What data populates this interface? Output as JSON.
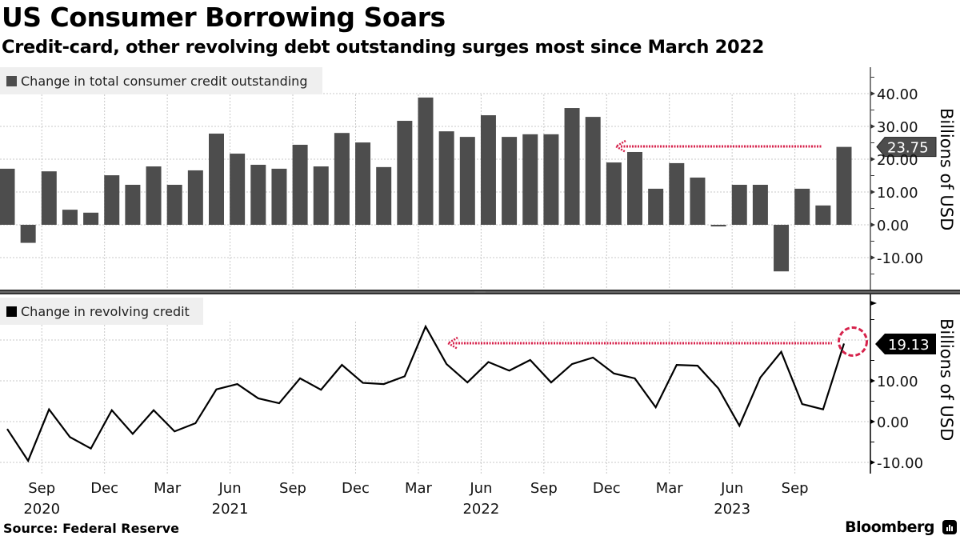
{
  "title": "US Consumer Borrowing Soars",
  "subtitle": "Credit-card, other revolving debt outstanding surges most since March 2022",
  "footer": {
    "source": "Source: Federal Reserve",
    "brand": "Bloomberg",
    "brand_icon": "bloomberg-terminal-icon"
  },
  "colors": {
    "bar": "#4d4d4d",
    "line": "#000000",
    "annotation": "#d6224b",
    "grid": "#c8c8c8",
    "legend_bg": "#efefef"
  },
  "chart_data": [
    {
      "type": "bar",
      "panel": "top",
      "legend": "Change in total consumer credit outstanding",
      "ylabel": "Billions of USD",
      "ylim": [
        -20,
        48
      ],
      "yticks": [
        -10,
        0,
        10,
        20,
        30,
        40
      ],
      "ytick_labels": [
        "-10.00",
        "0.00",
        "10.00",
        "20.00",
        "30.00",
        "40.00"
      ],
      "grid": true,
      "last_value_label": "23.75",
      "annotation": "arrow from latest value back to Dec 2022 level",
      "categories": [
        "Jul 2020",
        "Aug 2020",
        "Sep 2020",
        "Oct 2020",
        "Nov 2020",
        "Dec 2020",
        "Jan 2021",
        "Feb 2021",
        "Mar 2021",
        "Apr 2021",
        "May 2021",
        "Jun 2021",
        "Jul 2021",
        "Aug 2021",
        "Sep 2021",
        "Oct 2021",
        "Nov 2021",
        "Dec 2021",
        "Jan 2022",
        "Feb 2022",
        "Mar 2022",
        "Apr 2022",
        "May 2022",
        "Jun 2022",
        "Jul 2022",
        "Aug 2022",
        "Sep 2022",
        "Oct 2022",
        "Nov 2022",
        "Dec 2022",
        "Jan 2023",
        "Feb 2023",
        "Mar 2023",
        "Apr 2023",
        "May 2023",
        "Jun 2023",
        "Jul 2023",
        "Aug 2023",
        "Sep 2023",
        "Oct 2023",
        "Nov 2023"
      ],
      "values": [
        17.1,
        -5.5,
        16.3,
        4.6,
        3.7,
        15.1,
        12.2,
        17.8,
        12.2,
        16.6,
        27.8,
        21.7,
        18.3,
        17.1,
        24.4,
        17.8,
        28.0,
        25.1,
        17.6,
        31.7,
        38.8,
        28.5,
        26.8,
        33.4,
        26.8,
        27.6,
        27.6,
        35.6,
        32.9,
        19.0,
        22.2,
        11.0,
        18.8,
        14.4,
        -0.5,
        12.2,
        12.2,
        -14.2,
        11.0,
        5.9,
        23.75
      ]
    },
    {
      "type": "line",
      "panel": "bottom",
      "legend": "Change in revolving credit",
      "ylabel": "Billions of USD",
      "ylim": [
        -12,
        30
      ],
      "yticks": [
        -10,
        0,
        10
      ],
      "ytick_labels": [
        "-10.00",
        "0.00",
        "10.00"
      ],
      "grid": true,
      "last_value_label": "19.13",
      "annotation": "dotted arrow from circled latest value back to March 2022 level",
      "categories": [
        "Jul 2020",
        "Aug 2020",
        "Sep 2020",
        "Oct 2020",
        "Nov 2020",
        "Dec 2020",
        "Jan 2021",
        "Feb 2021",
        "Mar 2021",
        "Apr 2021",
        "May 2021",
        "Jun 2021",
        "Jul 2021",
        "Aug 2021",
        "Sep 2021",
        "Oct 2021",
        "Nov 2021",
        "Dec 2021",
        "Jan 2022",
        "Feb 2022",
        "Mar 2022",
        "Apr 2022",
        "May 2022",
        "Jun 2022",
        "Jul 2022",
        "Aug 2022",
        "Sep 2022",
        "Oct 2022",
        "Nov 2022",
        "Dec 2022",
        "Jan 2023",
        "Feb 2023",
        "Mar 2023",
        "Apr 2023",
        "May 2023",
        "Jun 2023",
        "Jul 2023",
        "Aug 2023",
        "Sep 2023",
        "Oct 2023",
        "Nov 2023"
      ],
      "values": [
        -1.8,
        -9.6,
        3.0,
        -3.8,
        -6.6,
        2.8,
        -3.0,
        2.8,
        -2.4,
        -0.4,
        7.9,
        9.2,
        5.7,
        4.5,
        10.6,
        7.8,
        13.9,
        9.5,
        9.2,
        11.1,
        23.3,
        14.1,
        9.6,
        14.6,
        12.5,
        15.1,
        9.6,
        14.1,
        15.7,
        11.8,
        10.6,
        3.5,
        13.9,
        13.7,
        8.1,
        -1.0,
        10.8,
        17.1,
        4.3,
        3.0,
        19.13
      ]
    }
  ],
  "x_axis": {
    "ticks": [
      {
        "month": "Sep",
        "year": "2020"
      },
      {
        "month": "Dec",
        "year": ""
      },
      {
        "month": "Mar",
        "year": ""
      },
      {
        "month": "Jun",
        "year": "2021"
      },
      {
        "month": "Sep",
        "year": ""
      },
      {
        "month": "Dec",
        "year": ""
      },
      {
        "month": "Mar",
        "year": ""
      },
      {
        "month": "Jun",
        "year": "2022"
      },
      {
        "month": "Sep",
        "year": ""
      },
      {
        "month": "Dec",
        "year": ""
      },
      {
        "month": "Mar",
        "year": ""
      },
      {
        "month": "Jun",
        "year": "2023"
      },
      {
        "month": "Sep",
        "year": ""
      }
    ]
  }
}
